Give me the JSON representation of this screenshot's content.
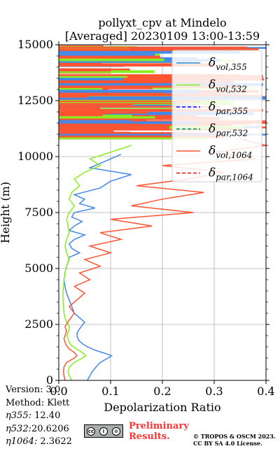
{
  "chart_data": {
    "type": "line",
    "title_line1": "pollyxt_cpv at Mindelo",
    "title_line2": "[Averaged] 20230109 13:00-13:59",
    "xlabel": "Depolarization Ratio",
    "ylabel": "Height (m)",
    "xlim": [
      0,
      0.4
    ],
    "ylim": [
      0,
      15000
    ],
    "xticks": [
      "0.0",
      "0.1",
      "0.2",
      "0.3",
      "0.4"
    ],
    "yticks": [
      "0",
      "2500",
      "5000",
      "7500",
      "10000",
      "12500",
      "15000"
    ],
    "grid": true,
    "legend_position": "top-right",
    "legend": [
      {
        "sub": "vol,355",
        "color": "#1f8fe0",
        "style": "solid"
      },
      {
        "sub": "vol,532",
        "color": "#80ee10",
        "style": "solid"
      },
      {
        "sub": "par,355",
        "color": "#0000ff",
        "style": "dashed"
      },
      {
        "sub": "par,532",
        "color": "#007f3f",
        "style": "dashed"
      },
      {
        "sub": "vol,1064",
        "color": "#ff5533",
        "style": "solid"
      },
      {
        "sub": "par,1064",
        "color": "#dd1111",
        "style": "dashed"
      }
    ],
    "series": [
      {
        "key": "vol_355",
        "color": "#4488e8",
        "x": [
          0.055,
          0.06,
          0.065,
          0.072,
          0.08,
          0.095,
          0.102,
          0.09,
          0.07,
          0.055,
          0.045,
          0.038,
          0.035,
          0.036,
          0.04,
          0.045,
          0.05,
          0.04,
          0.03,
          0.025,
          0.02,
          0.015,
          0.012,
          0.01,
          0.012,
          0.015,
          0.018,
          0.02,
          0.04,
          0.025,
          0.02,
          0.03,
          0.05,
          0.02,
          0.03,
          0.045,
          0.025,
          0.03,
          0.07,
          0.04,
          0.05,
          0.03,
          0.08,
          0.1,
          0.14,
          0.06,
          0.09,
          0.12
        ],
        "y": [
          0,
          200,
          400,
          600,
          800,
          1000,
          1100,
          1200,
          1350,
          1500,
          1650,
          1800,
          2000,
          2150,
          2300,
          2450,
          2600,
          2800,
          3000,
          3300,
          3600,
          3900,
          4200,
          4500,
          4800,
          5100,
          5300,
          5500,
          5700,
          5900,
          6100,
          6300,
          6500,
          6700,
          6900,
          7100,
          7300,
          7500,
          7700,
          7900,
          8100,
          8300,
          8600,
          8900,
          9200,
          9500,
          9800,
          10100
        ]
      },
      {
        "key": "vol_532",
        "color": "#88ee22",
        "x": [
          0.025,
          0.02,
          0.018,
          0.02,
          0.03,
          0.045,
          0.052,
          0.045,
          0.035,
          0.025,
          0.02,
          0.018,
          0.016,
          0.018,
          0.02,
          0.02,
          0.015,
          0.012,
          0.01,
          0.009,
          0.008,
          0.008,
          0.009,
          0.01,
          0.012,
          0.015,
          0.02,
          0.015,
          0.012,
          0.015,
          0.02,
          0.018,
          0.015,
          0.02,
          0.03,
          0.02,
          0.025,
          0.04,
          0.03,
          0.05,
          0.08,
          0.06,
          0.1,
          0.14
        ],
        "y": [
          0,
          200,
          400,
          600,
          800,
          1000,
          1100,
          1250,
          1400,
          1550,
          1700,
          1850,
          2000,
          2150,
          2300,
          2450,
          2600,
          2800,
          3000,
          3300,
          3600,
          3900,
          4200,
          4500,
          4800,
          5100,
          5400,
          5700,
          6000,
          6300,
          6600,
          6900,
          7200,
          7500,
          7800,
          8100,
          8400,
          8700,
          9000,
          9300,
          9600,
          9900,
          10200,
          10500
        ]
      },
      {
        "key": "vol_1064",
        "color": "#ff5533",
        "x": [
          0.012,
          0.01,
          0.009,
          0.01,
          0.015,
          0.03,
          0.035,
          0.03,
          0.02,
          0.015,
          0.012,
          0.01,
          0.012,
          0.015,
          0.012,
          0.02,
          0.03,
          0.02,
          0.035,
          0.05,
          0.03,
          0.06,
          0.04,
          0.08,
          0.05,
          0.1,
          0.06,
          0.12,
          0.08,
          0.18,
          0.1,
          0.26,
          0.14,
          0.2,
          0.28,
          0.15,
          0.25,
          0.32,
          0.2,
          0.38,
          0.3,
          0.4,
          0.35
        ],
        "y": [
          0,
          200,
          400,
          600,
          800,
          1000,
          1100,
          1250,
          1400,
          1550,
          1700,
          1850,
          2000,
          2200,
          2400,
          2700,
          3000,
          3300,
          3600,
          3900,
          4200,
          4500,
          4800,
          5100,
          5400,
          5700,
          6000,
          6300,
          6600,
          6900,
          7200,
          7500,
          7800,
          8100,
          8400,
          8700,
          9000,
          9300,
          9600,
          9900,
          10200,
          10500,
          10800
        ]
      }
    ],
    "noisy_region": {
      "y_from": 10800,
      "y_to": 15000,
      "note": "dense noisy lines of all series"
    }
  },
  "footer": {
    "version": "Version: 3.0",
    "method": "Method: Klett",
    "eta355_label": "η355:",
    "eta355_value": "12.40",
    "eta532_label": "η532:",
    "eta532_value": "20.6206",
    "eta1064_label": "η1064:",
    "eta1064_value": "2.3622",
    "cc_labels": [
      "cc",
      "i",
      "⊙"
    ],
    "cc_sub": [
      "BY",
      "SA"
    ],
    "preliminary_line1": "Preliminary",
    "preliminary_line2": "Results.",
    "copyright_line1": "© TROPOS & OSCM 2023.",
    "copyright_line2": "CC BY SA 4.0 License."
  }
}
